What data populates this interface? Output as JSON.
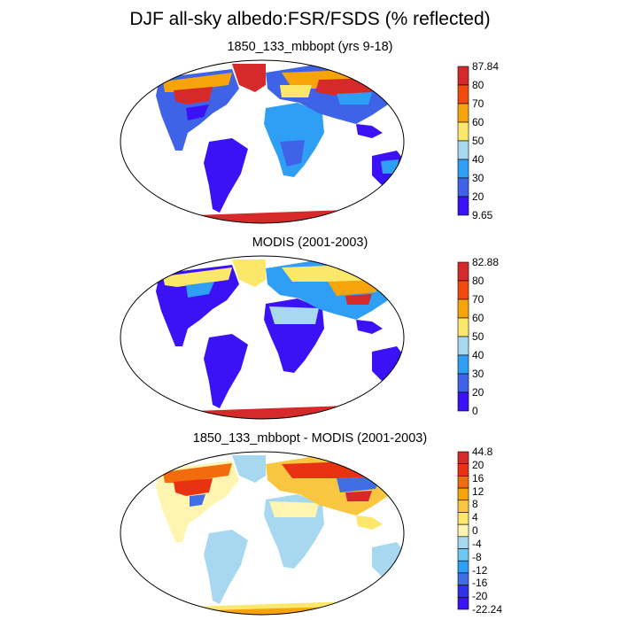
{
  "title": "DJF all-sky albedo:FSR/FSDS (% reflected)",
  "colors": {
    "albedo": [
      "#3b12f6",
      "#3f63e6",
      "#2f9ff5",
      "#a8d8f0",
      "#fbe86b",
      "#f7a30a",
      "#f2490f",
      "#d62a2a"
    ],
    "diff": [
      "#3b12f6",
      "#2f33e8",
      "#3f6ee6",
      "#2f9ff5",
      "#6ec7f2",
      "#a8d8f0",
      "#fff5b0",
      "#fbe86b",
      "#f9c641",
      "#f7a30a",
      "#f26b0c",
      "#e83211",
      "#d62a2a"
    ]
  },
  "panels": [
    {
      "id": "model",
      "title": "1850_133_mbbopt (yrs 9-18)",
      "colorbar_labels": [
        "87.84",
        "80",
        "70",
        "60",
        "50",
        "40",
        "30",
        "20",
        "9.65"
      ]
    },
    {
      "id": "obs",
      "title": "MODIS (2001-2003)",
      "colorbar_labels": [
        "82.88",
        "80",
        "70",
        "60",
        "50",
        "40",
        "30",
        "20",
        "0"
      ]
    },
    {
      "id": "diff",
      "title": "1850_133_mbbopt - MODIS (2001-2003)",
      "colorbar_labels": [
        "44.8",
        "20",
        "16",
        "12",
        "8",
        "4",
        "0",
        "-4",
        "-8",
        "-12",
        "-16",
        "-20",
        "-22.24"
      ]
    }
  ]
}
